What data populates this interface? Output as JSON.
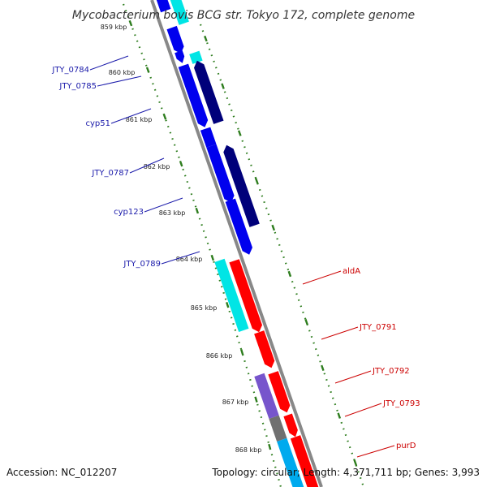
{
  "title": "Mycobacterium bovis BCG str. Tokyo 172, complete genome",
  "footer": {
    "accession": "Accession: NC_012207",
    "summary": "Topology: circular; Length: 4,371,711 bp; Genes: 3,993"
  },
  "colors": {
    "backbone": "#888888",
    "ticks": "#2e7d1e",
    "forward_cds": "#0000ee",
    "reverse_cds": "#00007a",
    "forward_gene": "#00e5e5",
    "strand_red": "#ff0000",
    "gene_purple": "#7755cc",
    "gene_gray": "#707070",
    "gene_skyblue": "#00aaee",
    "left_label": "#1a1aaa",
    "right_label": "#cc0000"
  },
  "kbp_labels": [
    "859 kbp",
    "860 kbp",
    "861 kbp",
    "862 kbp",
    "863 kbp",
    "864 kbp",
    "865 kbp",
    "866 kbp",
    "867 kbp",
    "868 kbp"
  ],
  "left_genes": [
    "JTY_0784",
    "JTY_0785",
    "cyp51",
    "JTY_0787",
    "cyp123",
    "JTY_0789"
  ],
  "right_genes": [
    "aldA",
    "JTY_0791",
    "JTY_0792",
    "JTY_0793",
    "purD"
  ]
}
